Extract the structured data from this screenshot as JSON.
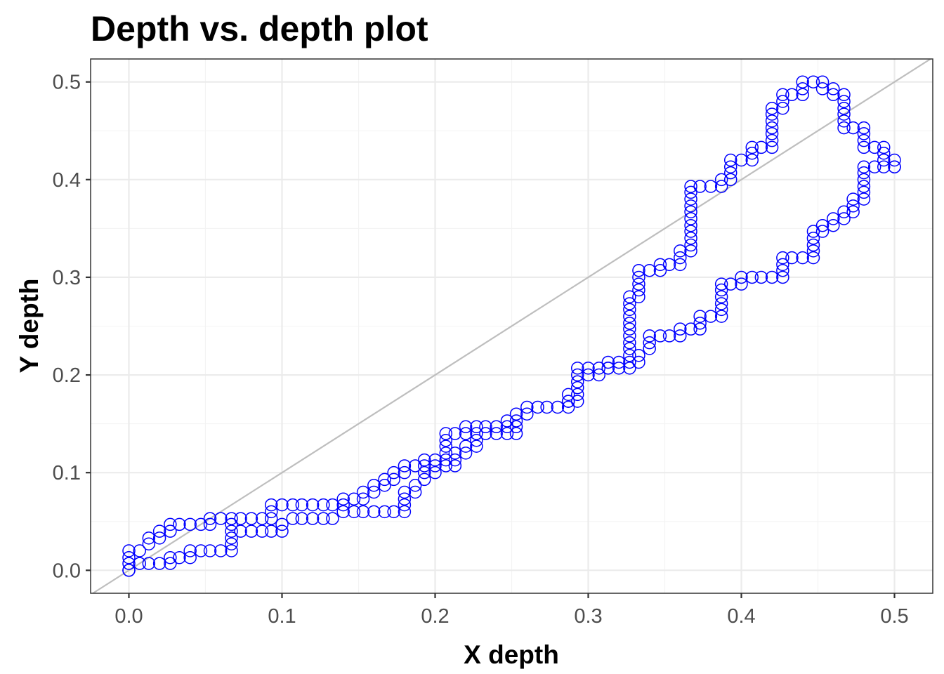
{
  "chart_data": {
    "type": "scatter",
    "title": "Depth vs. depth plot",
    "xlabel": "X depth",
    "ylabel": "Y depth",
    "xlim": [
      -0.025,
      0.525
    ],
    "ylim": [
      -0.0235,
      0.5235
    ],
    "x_ticks": [
      0.0,
      0.1,
      0.2,
      0.3,
      0.4,
      0.5
    ],
    "x_tick_labels": [
      "0.0",
      "0.1",
      "0.2",
      "0.3",
      "0.4",
      "0.5"
    ],
    "y_ticks": [
      0.0,
      0.1,
      0.2,
      0.3,
      0.4,
      0.5
    ],
    "y_tick_labels": [
      "0.0",
      "0.1",
      "0.2",
      "0.3",
      "0.4",
      "0.5"
    ],
    "grid": true,
    "reference_line": {
      "intercept": 0,
      "slope": 1
    },
    "marker": {
      "shape": "open-circle",
      "color": "#0000ff"
    },
    "colors": {
      "point": "#0000ff",
      "reference_line": "#bebebe",
      "grid": "#ebebeb"
    },
    "upper_path": [
      [
        0.0,
        0.0
      ],
      [
        0.0,
        0.007
      ],
      [
        0.0,
        0.013
      ],
      [
        0.0,
        0.02
      ],
      [
        0.007,
        0.02
      ],
      [
        0.013,
        0.027
      ],
      [
        0.013,
        0.033
      ],
      [
        0.02,
        0.033
      ],
      [
        0.02,
        0.04
      ],
      [
        0.027,
        0.04
      ],
      [
        0.027,
        0.047
      ],
      [
        0.033,
        0.047
      ],
      [
        0.04,
        0.047
      ],
      [
        0.047,
        0.047
      ],
      [
        0.053,
        0.047
      ],
      [
        0.053,
        0.053
      ],
      [
        0.06,
        0.053
      ],
      [
        0.067,
        0.053
      ],
      [
        0.073,
        0.053
      ],
      [
        0.08,
        0.053
      ],
      [
        0.087,
        0.053
      ],
      [
        0.093,
        0.053
      ],
      [
        0.093,
        0.06
      ],
      [
        0.093,
        0.067
      ],
      [
        0.1,
        0.067
      ],
      [
        0.107,
        0.067
      ],
      [
        0.113,
        0.067
      ],
      [
        0.12,
        0.067
      ],
      [
        0.127,
        0.067
      ],
      [
        0.133,
        0.067
      ],
      [
        0.14,
        0.067
      ],
      [
        0.14,
        0.073
      ],
      [
        0.147,
        0.073
      ],
      [
        0.153,
        0.073
      ],
      [
        0.153,
        0.08
      ],
      [
        0.16,
        0.08
      ],
      [
        0.16,
        0.087
      ],
      [
        0.167,
        0.087
      ],
      [
        0.167,
        0.093
      ],
      [
        0.173,
        0.093
      ],
      [
        0.173,
        0.1
      ],
      [
        0.18,
        0.1
      ],
      [
        0.18,
        0.107
      ],
      [
        0.187,
        0.107
      ],
      [
        0.193,
        0.107
      ],
      [
        0.193,
        0.113
      ],
      [
        0.2,
        0.113
      ],
      [
        0.207,
        0.113
      ],
      [
        0.207,
        0.12
      ],
      [
        0.207,
        0.127
      ],
      [
        0.207,
        0.133
      ],
      [
        0.207,
        0.14
      ],
      [
        0.213,
        0.14
      ],
      [
        0.22,
        0.14
      ],
      [
        0.22,
        0.147
      ],
      [
        0.227,
        0.147
      ],
      [
        0.233,
        0.147
      ],
      [
        0.24,
        0.147
      ],
      [
        0.247,
        0.147
      ],
      [
        0.247,
        0.153
      ],
      [
        0.253,
        0.153
      ],
      [
        0.253,
        0.16
      ],
      [
        0.26,
        0.16
      ],
      [
        0.26,
        0.167
      ],
      [
        0.267,
        0.167
      ],
      [
        0.273,
        0.167
      ],
      [
        0.28,
        0.167
      ],
      [
        0.287,
        0.167
      ],
      [
        0.287,
        0.173
      ],
      [
        0.287,
        0.18
      ],
      [
        0.293,
        0.18
      ],
      [
        0.293,
        0.187
      ],
      [
        0.293,
        0.193
      ],
      [
        0.293,
        0.2
      ],
      [
        0.293,
        0.207
      ],
      [
        0.3,
        0.207
      ],
      [
        0.307,
        0.207
      ],
      [
        0.313,
        0.207
      ],
      [
        0.313,
        0.213
      ],
      [
        0.32,
        0.213
      ],
      [
        0.327,
        0.213
      ],
      [
        0.327,
        0.22
      ],
      [
        0.327,
        0.227
      ],
      [
        0.327,
        0.233
      ],
      [
        0.327,
        0.24
      ],
      [
        0.327,
        0.247
      ],
      [
        0.327,
        0.253
      ],
      [
        0.327,
        0.26
      ],
      [
        0.327,
        0.267
      ],
      [
        0.327,
        0.273
      ],
      [
        0.327,
        0.28
      ],
      [
        0.333,
        0.28
      ],
      [
        0.333,
        0.287
      ],
      [
        0.333,
        0.293
      ],
      [
        0.333,
        0.3
      ],
      [
        0.333,
        0.307
      ],
      [
        0.34,
        0.307
      ],
      [
        0.347,
        0.307
      ],
      [
        0.347,
        0.313
      ],
      [
        0.353,
        0.313
      ],
      [
        0.36,
        0.313
      ],
      [
        0.36,
        0.32
      ],
      [
        0.36,
        0.327
      ],
      [
        0.367,
        0.327
      ],
      [
        0.367,
        0.333
      ],
      [
        0.367,
        0.34
      ],
      [
        0.367,
        0.347
      ],
      [
        0.367,
        0.353
      ],
      [
        0.367,
        0.36
      ],
      [
        0.367,
        0.367
      ],
      [
        0.367,
        0.373
      ],
      [
        0.367,
        0.38
      ],
      [
        0.367,
        0.387
      ],
      [
        0.367,
        0.393
      ],
      [
        0.373,
        0.393
      ],
      [
        0.38,
        0.393
      ],
      [
        0.387,
        0.393
      ],
      [
        0.387,
        0.4
      ],
      [
        0.393,
        0.4
      ],
      [
        0.393,
        0.407
      ],
      [
        0.393,
        0.413
      ],
      [
        0.393,
        0.42
      ],
      [
        0.4,
        0.42
      ],
      [
        0.407,
        0.42
      ],
      [
        0.407,
        0.427
      ],
      [
        0.407,
        0.433
      ],
      [
        0.413,
        0.433
      ],
      [
        0.42,
        0.433
      ],
      [
        0.42,
        0.44
      ],
      [
        0.42,
        0.447
      ],
      [
        0.42,
        0.453
      ],
      [
        0.42,
        0.46
      ],
      [
        0.42,
        0.467
      ],
      [
        0.42,
        0.473
      ],
      [
        0.427,
        0.473
      ],
      [
        0.427,
        0.48
      ],
      [
        0.427,
        0.487
      ],
      [
        0.433,
        0.487
      ],
      [
        0.44,
        0.487
      ],
      [
        0.44,
        0.493
      ],
      [
        0.44,
        0.5
      ],
      [
        0.447,
        0.5
      ],
      [
        0.453,
        0.5
      ],
      [
        0.453,
        0.493
      ],
      [
        0.46,
        0.493
      ],
      [
        0.46,
        0.487
      ],
      [
        0.467,
        0.487
      ],
      [
        0.467,
        0.48
      ],
      [
        0.467,
        0.473
      ],
      [
        0.467,
        0.467
      ],
      [
        0.467,
        0.46
      ],
      [
        0.467,
        0.453
      ],
      [
        0.473,
        0.453
      ],
      [
        0.48,
        0.453
      ],
      [
        0.48,
        0.447
      ],
      [
        0.48,
        0.44
      ],
      [
        0.48,
        0.433
      ],
      [
        0.487,
        0.433
      ],
      [
        0.493,
        0.433
      ],
      [
        0.493,
        0.427
      ],
      [
        0.493,
        0.42
      ],
      [
        0.5,
        0.42
      ],
      [
        0.5,
        0.413
      ]
    ],
    "lower_path": [
      [
        0.0,
        0.0
      ],
      [
        0.007,
        0.007
      ],
      [
        0.013,
        0.007
      ],
      [
        0.02,
        0.007
      ],
      [
        0.027,
        0.007
      ],
      [
        0.027,
        0.013
      ],
      [
        0.033,
        0.013
      ],
      [
        0.04,
        0.013
      ],
      [
        0.04,
        0.02
      ],
      [
        0.047,
        0.02
      ],
      [
        0.053,
        0.02
      ],
      [
        0.06,
        0.02
      ],
      [
        0.067,
        0.02
      ],
      [
        0.067,
        0.027
      ],
      [
        0.067,
        0.033
      ],
      [
        0.067,
        0.04
      ],
      [
        0.067,
        0.047
      ],
      [
        0.073,
        0.04
      ],
      [
        0.08,
        0.04
      ],
      [
        0.087,
        0.04
      ],
      [
        0.093,
        0.04
      ],
      [
        0.1,
        0.04
      ],
      [
        0.1,
        0.047
      ],
      [
        0.107,
        0.053
      ],
      [
        0.113,
        0.053
      ],
      [
        0.12,
        0.053
      ],
      [
        0.127,
        0.053
      ],
      [
        0.133,
        0.053
      ],
      [
        0.14,
        0.06
      ],
      [
        0.147,
        0.06
      ],
      [
        0.153,
        0.06
      ],
      [
        0.16,
        0.06
      ],
      [
        0.167,
        0.06
      ],
      [
        0.173,
        0.06
      ],
      [
        0.18,
        0.06
      ],
      [
        0.18,
        0.067
      ],
      [
        0.18,
        0.073
      ],
      [
        0.18,
        0.08
      ],
      [
        0.187,
        0.08
      ],
      [
        0.187,
        0.087
      ],
      [
        0.193,
        0.093
      ],
      [
        0.193,
        0.1
      ],
      [
        0.2,
        0.1
      ],
      [
        0.2,
        0.107
      ],
      [
        0.207,
        0.107
      ],
      [
        0.213,
        0.107
      ],
      [
        0.213,
        0.113
      ],
      [
        0.213,
        0.12
      ],
      [
        0.22,
        0.12
      ],
      [
        0.22,
        0.127
      ],
      [
        0.227,
        0.127
      ],
      [
        0.227,
        0.133
      ],
      [
        0.227,
        0.14
      ],
      [
        0.233,
        0.14
      ],
      [
        0.24,
        0.14
      ],
      [
        0.247,
        0.14
      ],
      [
        0.253,
        0.14
      ],
      [
        0.253,
        0.147
      ],
      [
        0.287,
        0.173
      ],
      [
        0.293,
        0.173
      ],
      [
        0.3,
        0.2
      ],
      [
        0.307,
        0.2
      ],
      [
        0.313,
        0.207
      ],
      [
        0.32,
        0.207
      ],
      [
        0.327,
        0.207
      ],
      [
        0.333,
        0.213
      ],
      [
        0.333,
        0.22
      ],
      [
        0.34,
        0.227
      ],
      [
        0.34,
        0.233
      ],
      [
        0.34,
        0.24
      ],
      [
        0.347,
        0.24
      ],
      [
        0.353,
        0.24
      ],
      [
        0.36,
        0.24
      ],
      [
        0.36,
        0.247
      ],
      [
        0.367,
        0.247
      ],
      [
        0.373,
        0.247
      ],
      [
        0.373,
        0.253
      ],
      [
        0.373,
        0.26
      ],
      [
        0.38,
        0.26
      ],
      [
        0.387,
        0.26
      ],
      [
        0.387,
        0.267
      ],
      [
        0.387,
        0.273
      ],
      [
        0.387,
        0.28
      ],
      [
        0.387,
        0.287
      ],
      [
        0.387,
        0.293
      ],
      [
        0.393,
        0.293
      ],
      [
        0.4,
        0.293
      ],
      [
        0.4,
        0.3
      ],
      [
        0.407,
        0.3
      ],
      [
        0.413,
        0.3
      ],
      [
        0.42,
        0.3
      ],
      [
        0.427,
        0.3
      ],
      [
        0.427,
        0.307
      ],
      [
        0.427,
        0.313
      ],
      [
        0.427,
        0.32
      ],
      [
        0.433,
        0.32
      ],
      [
        0.44,
        0.32
      ],
      [
        0.447,
        0.32
      ],
      [
        0.447,
        0.327
      ],
      [
        0.447,
        0.333
      ],
      [
        0.447,
        0.34
      ],
      [
        0.447,
        0.347
      ],
      [
        0.453,
        0.347
      ],
      [
        0.453,
        0.353
      ],
      [
        0.46,
        0.353
      ],
      [
        0.46,
        0.36
      ],
      [
        0.467,
        0.36
      ],
      [
        0.467,
        0.367
      ],
      [
        0.473,
        0.367
      ],
      [
        0.473,
        0.373
      ],
      [
        0.473,
        0.38
      ],
      [
        0.48,
        0.38
      ],
      [
        0.48,
        0.387
      ],
      [
        0.48,
        0.393
      ],
      [
        0.48,
        0.4
      ],
      [
        0.48,
        0.407
      ],
      [
        0.48,
        0.413
      ],
      [
        0.487,
        0.413
      ],
      [
        0.493,
        0.413
      ],
      [
        0.5,
        0.413
      ]
    ]
  }
}
